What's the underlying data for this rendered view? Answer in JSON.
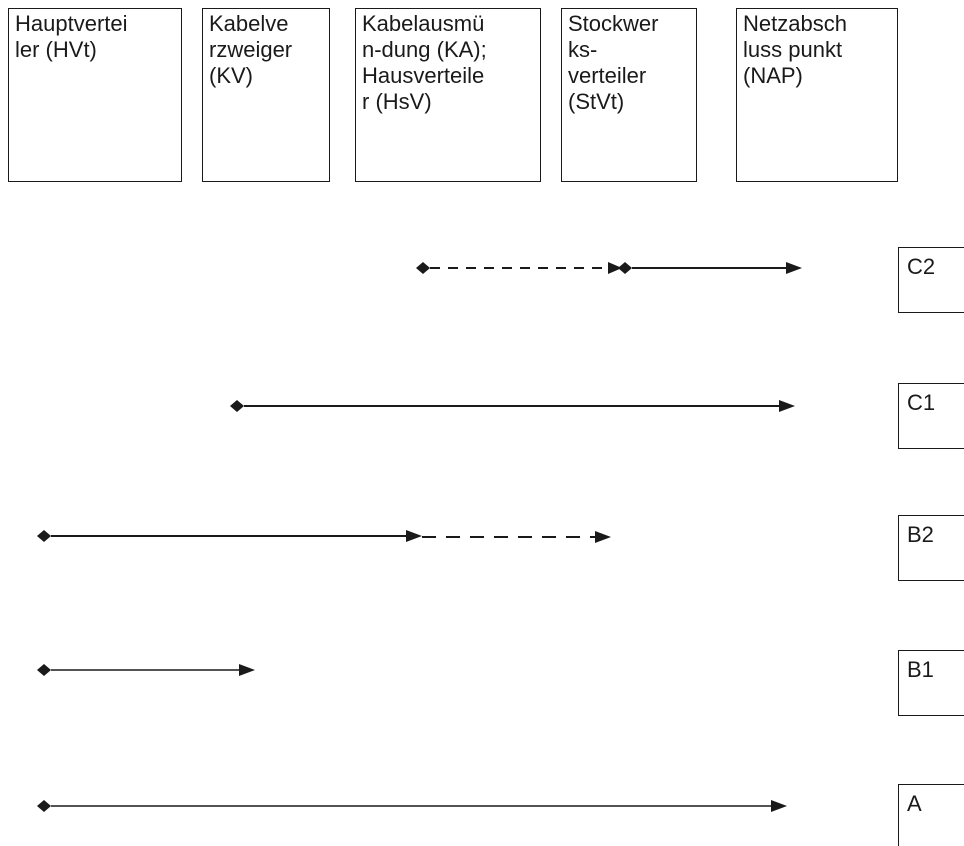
{
  "header_boxes": [
    {
      "lines": [
        "Hauptvertei",
        "ler (HVt)"
      ]
    },
    {
      "lines": [
        "Kabelve",
        "rzweiger",
        "(KV)"
      ]
    },
    {
      "lines": [
        "Kabelausmü",
        "n-dung (KA);",
        "Hausverteile",
        "r (HsV)"
      ]
    },
    {
      "lines": [
        "Stockwer",
        "ks-",
        "verteiler",
        "(StVt)"
      ]
    },
    {
      "lines": [
        "Netzabsch",
        "luss punkt",
        "(NAP)"
      ]
    }
  ],
  "row_labels": [
    "C2",
    "C1",
    "B2",
    "B1",
    "A"
  ]
}
